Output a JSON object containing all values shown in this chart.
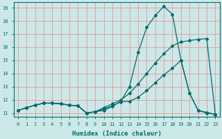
{
  "xlabel": "Humidex (Indice chaleur)",
  "background_color": "#cce8e8",
  "grid_color": "#e8a0a0",
  "line_color": "#006b6b",
  "xlim": [
    -0.5,
    23.5
  ],
  "ylim": [
    10.7,
    19.4
  ],
  "yticks": [
    11,
    12,
    13,
    14,
    15,
    16,
    17,
    18,
    19
  ],
  "xticks": [
    0,
    1,
    2,
    3,
    4,
    5,
    6,
    7,
    8,
    9,
    10,
    11,
    12,
    13,
    14,
    15,
    16,
    17,
    18,
    19,
    20,
    21,
    22,
    23
  ],
  "series": [
    {
      "x": [
        0,
        1,
        2,
        3,
        4,
        5,
        6,
        7,
        8,
        9,
        10,
        11,
        12,
        13,
        14,
        15,
        16,
        17,
        18,
        19,
        20,
        21,
        22,
        23
      ],
      "y": [
        11.2,
        11.4,
        11.6,
        11.75,
        11.75,
        11.7,
        11.6,
        11.55,
        11.0,
        11.1,
        11.2,
        11.5,
        11.9,
        13.0,
        15.6,
        17.5,
        18.4,
        19.1,
        18.5,
        15.0,
        12.5,
        11.2,
        11.0,
        10.9
      ]
    },
    {
      "x": [
        0,
        1,
        2,
        3,
        4,
        5,
        6,
        7,
        8,
        9,
        10,
        11,
        12,
        13,
        14,
        15,
        16,
        17,
        18,
        19,
        20,
        21,
        22,
        23
      ],
      "y": [
        11.2,
        11.4,
        11.6,
        11.75,
        11.75,
        11.7,
        11.6,
        11.55,
        11.0,
        11.1,
        11.4,
        11.7,
        12.0,
        12.5,
        13.2,
        14.0,
        14.8,
        15.5,
        16.1,
        16.4,
        16.5,
        16.6,
        16.65,
        10.9
      ]
    },
    {
      "x": [
        0,
        1,
        2,
        3,
        4,
        5,
        6,
        7,
        8,
        9,
        10,
        11,
        12,
        13,
        14,
        15,
        16,
        17,
        18,
        19,
        20,
        21,
        22,
        23
      ],
      "y": [
        11.2,
        11.4,
        11.6,
        11.75,
        11.75,
        11.7,
        11.6,
        11.55,
        11.0,
        11.1,
        11.3,
        11.55,
        11.85,
        11.9,
        12.2,
        12.7,
        13.3,
        13.9,
        14.4,
        15.0,
        12.5,
        11.2,
        11.05,
        10.9
      ]
    }
  ]
}
